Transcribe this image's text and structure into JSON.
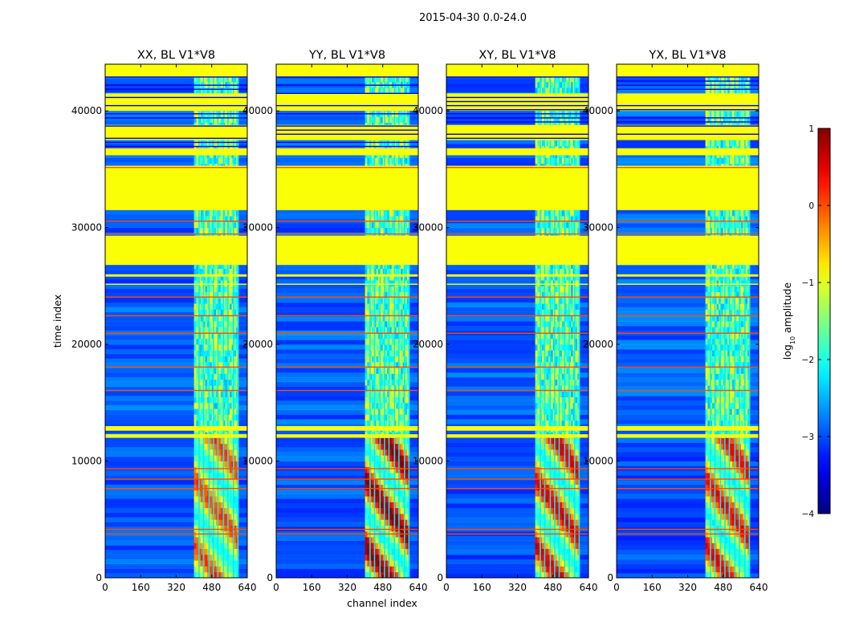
{
  "figure": {
    "suptitle": "2015-04-30 0.0-24.0"
  },
  "chart_data": {
    "type": "heatmap",
    "title": "2015-04-30 0.0-24.0",
    "xlabel": "channel index",
    "ylabel": "time index",
    "xlim": [
      0,
      640
    ],
    "ylim": [
      0,
      44000
    ],
    "x_ticks": [
      0,
      160,
      320,
      480,
      640
    ],
    "y_ticks": [
      0,
      10000,
      20000,
      30000,
      40000
    ],
    "panels": [
      {
        "title": "XX, BL V1*V8",
        "hot_band": [
          0,
          12000
        ],
        "hot_intensity": 0.78
      },
      {
        "title": "YY, BL V1*V8",
        "hot_band": [
          0,
          12000
        ],
        "hot_intensity": 0.95
      },
      {
        "title": "XY, BL V1*V8",
        "hot_band": [
          0,
          12000
        ],
        "hot_intensity": 0.88
      },
      {
        "title": "YX, BL V1*V8",
        "hot_band": [
          0,
          12000
        ],
        "hot_intensity": 0.85
      }
    ],
    "flagged_time_ranges": [
      [
        42900,
        44000
      ],
      [
        41500,
        40000
      ],
      [
        38800,
        37500
      ],
      [
        36800,
        36200
      ],
      [
        35300,
        31500
      ],
      [
        29300,
        26800
      ],
      [
        26000,
        25800
      ],
      [
        25200,
        25100
      ],
      [
        13000,
        12600
      ],
      [
        12300,
        12000
      ]
    ],
    "rfi_channel_range": [
      400,
      600
    ],
    "rfi_columns": [
      420,
      440,
      465,
      485,
      505,
      530,
      550,
      575,
      595
    ],
    "orange_lines": [
      3800,
      4200,
      7700,
      8500,
      9400,
      16100,
      18100,
      21000,
      22500,
      24100,
      29500,
      30600,
      35200
    ],
    "colorbar": {
      "label": "log",
      "label_sub": "10",
      "label_rest": "amplitude",
      "range": [
        -4,
        1
      ],
      "ticks": [
        -4,
        -3,
        -2,
        -1,
        0,
        1
      ],
      "tick_labels": [
        "−4",
        "−3",
        "−2",
        "−1",
        "0",
        "1"
      ],
      "colormap": "jet"
    }
  }
}
